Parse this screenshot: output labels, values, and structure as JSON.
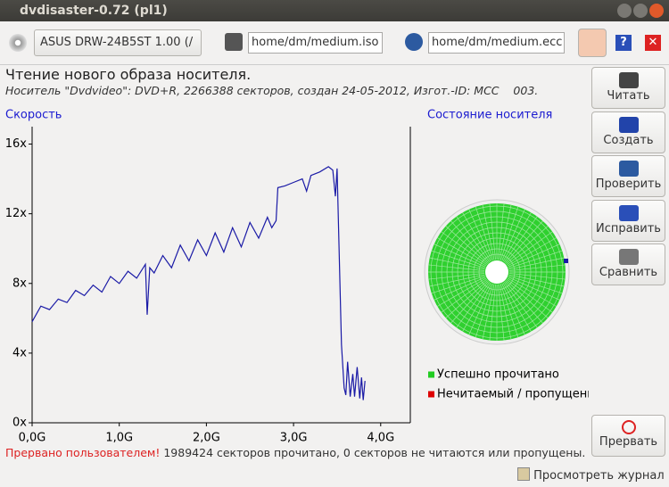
{
  "window": {
    "title": "dvdisaster-0.72 (pl1)"
  },
  "toolbar": {
    "drive": "ASUS DRW-24B5ST 1.00 (/",
    "image_file": "home/dm/medium.iso",
    "ecc_file": "home/dm/medium.ecc"
  },
  "header": {
    "title": "Чтение нового образа носителя.",
    "subtitle": "Носитель \"Dvdvideo\": DVD+R, 2266388 секторов, создан 24-05-2012, Изгот.-ID: MCC    003."
  },
  "chart_data": {
    "type": "line",
    "title": "Скорость",
    "x": [
      0.0,
      0.1,
      0.2,
      0.3,
      0.4,
      0.5,
      0.6,
      0.7,
      0.8,
      0.9,
      1.0,
      1.1,
      1.2,
      1.3,
      1.32,
      1.35,
      1.4,
      1.5,
      1.6,
      1.7,
      1.8,
      1.9,
      2.0,
      2.1,
      2.2,
      2.3,
      2.4,
      2.5,
      2.6,
      2.7,
      2.75,
      2.8,
      2.82,
      2.9,
      3.0,
      3.1,
      3.15,
      3.2,
      3.3,
      3.4,
      3.45,
      3.48,
      3.5,
      3.55,
      3.58,
      3.6,
      3.62,
      3.65,
      3.68,
      3.7,
      3.73,
      3.76,
      3.78,
      3.8,
      3.82
    ],
    "series": [
      {
        "name": "Скорость",
        "color": "#1a1aa6",
        "values": [
          5.8,
          6.7,
          6.5,
          7.1,
          6.9,
          7.6,
          7.3,
          7.9,
          7.5,
          8.4,
          8.0,
          8.7,
          8.3,
          9.1,
          6.2,
          8.9,
          8.6,
          9.6,
          8.9,
          10.2,
          9.3,
          10.5,
          9.6,
          10.9,
          9.8,
          11.2,
          10.1,
          11.5,
          10.6,
          11.8,
          11.2,
          11.6,
          13.5,
          13.6,
          13.8,
          14.0,
          13.3,
          14.2,
          14.4,
          14.7,
          14.5,
          13.0,
          14.6,
          4.5,
          2.0,
          1.6,
          3.5,
          1.5,
          2.8,
          1.5,
          3.2,
          1.4,
          2.6,
          1.3,
          2.4
        ]
      }
    ],
    "xlim": [
      0,
      4.34
    ],
    "ylim": [
      0,
      17
    ],
    "xticks": [
      {
        "value": 0,
        "label": "0,0G"
      },
      {
        "value": 1,
        "label": "1,0G"
      },
      {
        "value": 2,
        "label": "2,0G"
      },
      {
        "value": 3,
        "label": "3,0G"
      },
      {
        "value": 4,
        "label": "4,0G"
      }
    ],
    "yticks": [
      {
        "value": 0,
        "label": "0x"
      },
      {
        "value": 4,
        "label": "4x"
      },
      {
        "value": 8,
        "label": "8x"
      },
      {
        "value": 12,
        "label": "12x"
      },
      {
        "value": 16,
        "label": "16x"
      }
    ],
    "grid": false
  },
  "disc": {
    "title": "Состояние носителя",
    "legend": [
      {
        "label": "Успешно прочитано",
        "color": "#22cc22"
      },
      {
        "label": "Нечитаемый / пропущенн",
        "color": "#dd0000"
      }
    ]
  },
  "sidebar": {
    "buttons": [
      "Читать",
      "Создать",
      "Проверить",
      "Исправить",
      "Сравнить"
    ],
    "abort": "Прервать"
  },
  "status": {
    "alert": "Прервано пользователем!",
    "message": " 1989424 секторов прочитано, 0 секторов не читаются или пропущены."
  },
  "footer": {
    "log_button": "Просмотреть журнал"
  }
}
